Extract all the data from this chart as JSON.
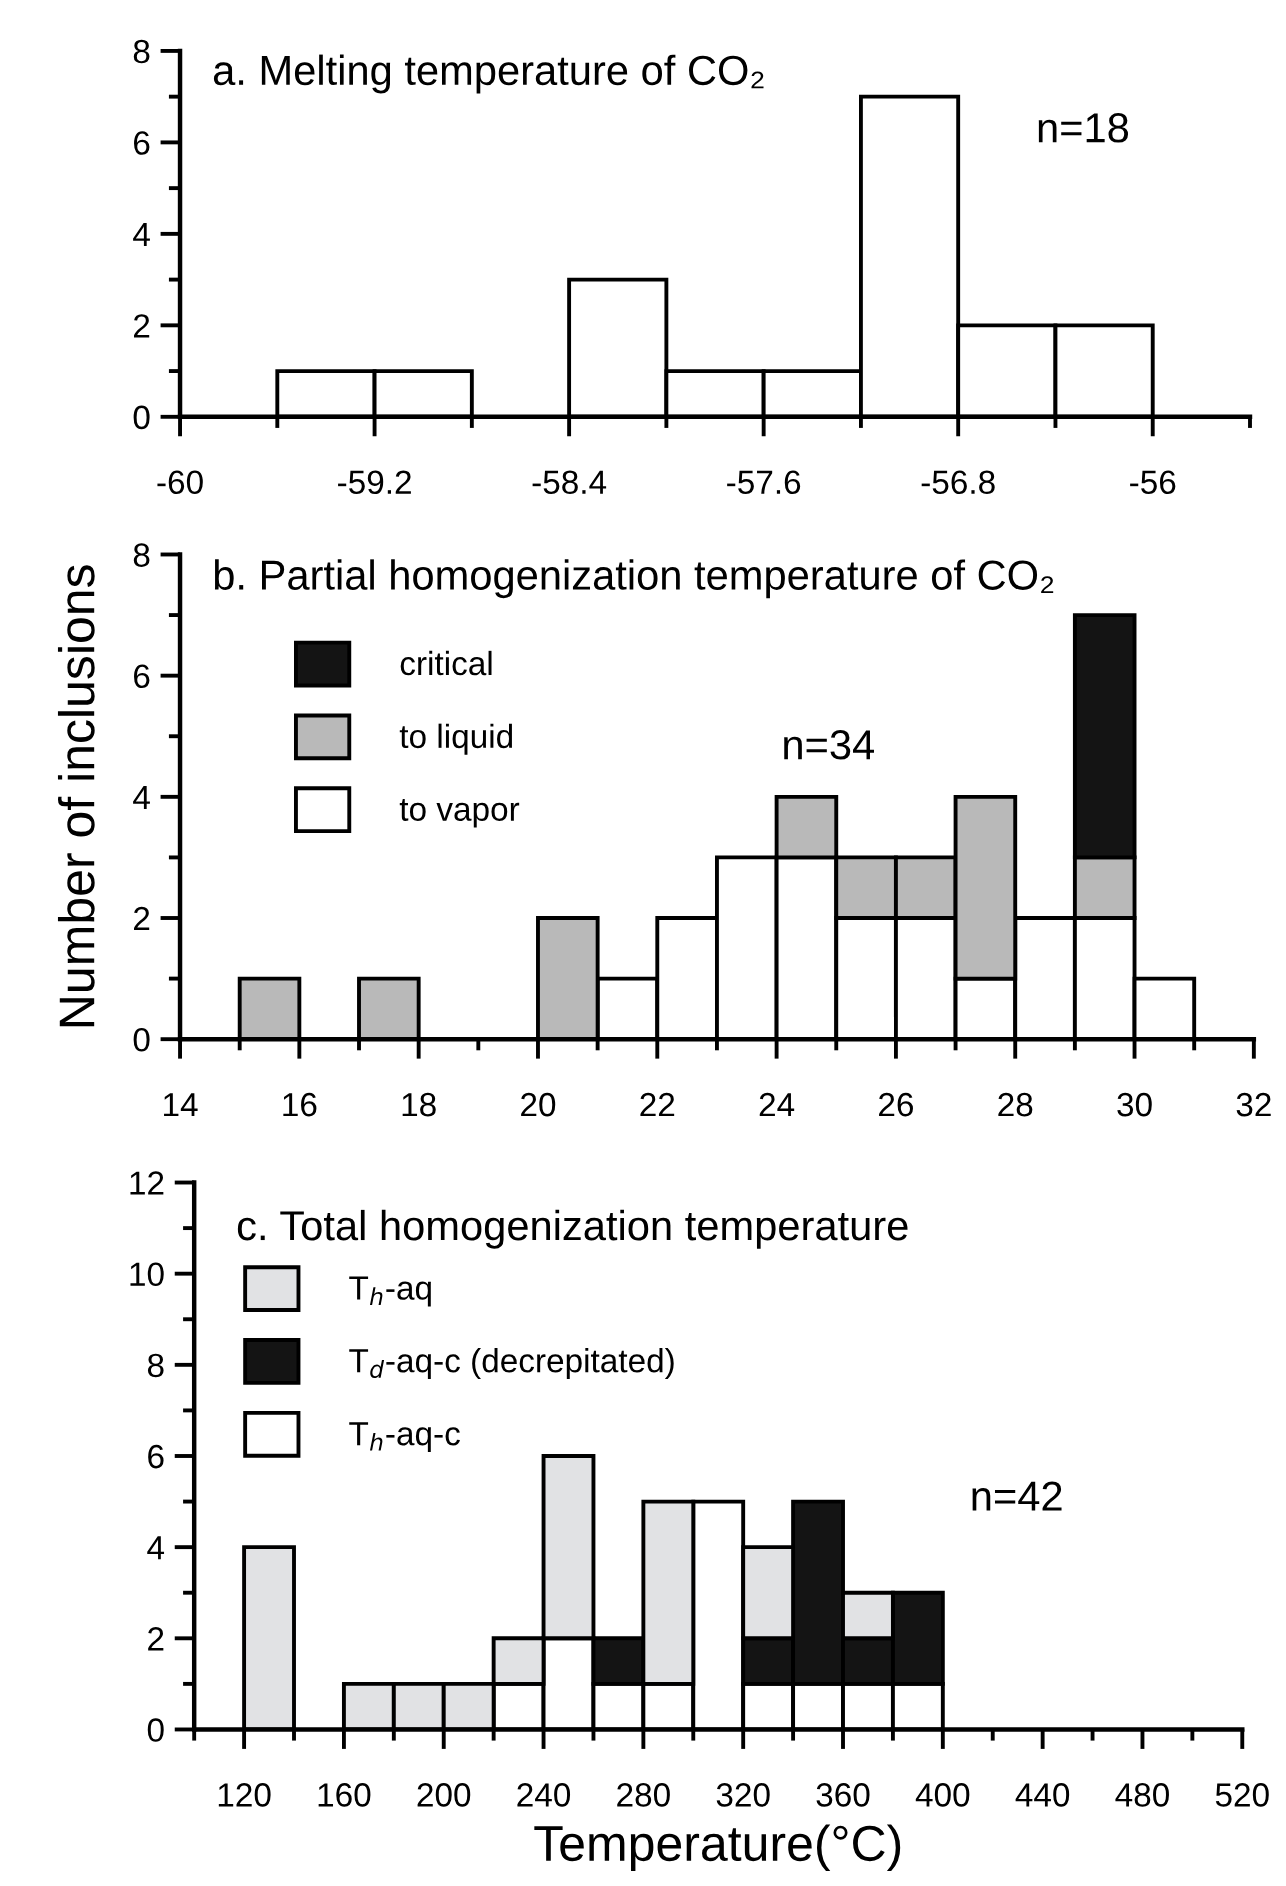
{
  "chart_data": [
    {
      "type": "histogram",
      "title": "a. Melting temperature of CO₂",
      "bins": [
        -59.6,
        -59.2,
        -58.8,
        -58.4,
        -58.0,
        -57.6,
        -57.2,
        -56.8,
        -56.4,
        -56.0
      ],
      "values": [
        1,
        1,
        0,
        3,
        1,
        1,
        7,
        2,
        2
      ],
      "color": "#ffffff",
      "xlim": [
        -60,
        -55.6
      ],
      "xticks": [
        -60,
        {
          "value": -59.6,
          "label": null
        },
        -59.2,
        {
          "value": -58.8,
          "label": null
        },
        -58.4,
        {
          "value": -58.0,
          "label": null
        },
        -57.6,
        {
          "value": -57.2,
          "label": null
        },
        -56.8,
        {
          "value": -56.4,
          "label": null
        },
        -56,
        {
          "value": -55.6,
          "label": null
        }
      ],
      "ylim": [
        0,
        8
      ],
      "yticks": [
        0,
        {
          "value": 1,
          "label": null
        },
        2,
        {
          "value": 3,
          "label": null
        },
        4,
        {
          "value": 5,
          "label": null
        },
        6,
        {
          "value": 7,
          "label": null
        },
        8
      ],
      "annotations": [
        "n=18"
      ],
      "grid": false,
      "legend": false
    },
    {
      "type": "bar",
      "title": "b. Partial homogenization temperature of CO₂",
      "ylabel": "Number of inclusions",
      "x": [
        15.5,
        16.5,
        17.5,
        18.5,
        19.5,
        20.5,
        21.5,
        22.5,
        23.5,
        24.5,
        25.5,
        26.5,
        27.5,
        28.5,
        29.5,
        30.5
      ],
      "stacked": true,
      "series": [
        {
          "name": "to vapor",
          "color": "#ffffff",
          "values": [
            0,
            0,
            0,
            0,
            0,
            0,
            1,
            2,
            3,
            3,
            2,
            2,
            1,
            2,
            2,
            1
          ]
        },
        {
          "name": "to liquid",
          "color": "#b9b9b9",
          "values": [
            1,
            0,
            1,
            0,
            0,
            2,
            0,
            0,
            0,
            1,
            1,
            1,
            3,
            0,
            1,
            0
          ]
        },
        {
          "name": "critical",
          "color": "#141414",
          "values": [
            0,
            0,
            0,
            0,
            0,
            0,
            0,
            0,
            0,
            0,
            0,
            0,
            0,
            0,
            4,
            0
          ]
        }
      ],
      "xlim": [
        14,
        32
      ],
      "xticks": [
        14,
        {
          "value": 15,
          "label": null
        },
        16,
        {
          "value": 17,
          "label": null
        },
        18,
        {
          "value": 19,
          "label": null
        },
        20,
        {
          "value": 21,
          "label": null
        },
        22,
        {
          "value": 23,
          "label": null
        },
        24,
        {
          "value": 25,
          "label": null
        },
        26,
        {
          "value": 27,
          "label": null
        },
        28,
        {
          "value": 29,
          "label": null
        },
        30,
        {
          "value": 31,
          "label": null
        },
        32
      ],
      "ylim": [
        0,
        8
      ],
      "yticks": [
        0,
        {
          "value": 1,
          "label": null
        },
        2,
        {
          "value": 3,
          "label": null
        },
        4,
        {
          "value": 5,
          "label": null
        },
        6,
        {
          "value": 7,
          "label": null
        },
        8
      ],
      "annotations": [
        "n=34"
      ],
      "grid": false,
      "legend": "top left"
    },
    {
      "type": "bar",
      "title": "c. Total homogenization temperature",
      "xlabel": "Temperature(°C)",
      "x": [
        130,
        150,
        170,
        190,
        210,
        230,
        250,
        270,
        290,
        310,
        330,
        350,
        370,
        390
      ],
      "stacked": true,
      "series": [
        {
          "name": "T$_{h}$-aq-c",
          "color": "#ffffff",
          "values": [
            0,
            0,
            0,
            0,
            0,
            1,
            2,
            1,
            1,
            5,
            1,
            1,
            1,
            1
          ]
        },
        {
          "name": "T$_{d}$-aq-c (decrepitated)",
          "color": "#141414",
          "values": [
            0,
            0,
            0,
            0,
            0,
            0,
            0,
            1,
            0,
            0,
            1,
            4,
            1,
            2
          ]
        },
        {
          "name": "T$_{h}$-aq",
          "color": "#e1e2e4",
          "values": [
            4,
            0,
            1,
            1,
            1,
            1,
            4,
            0,
            4,
            0,
            2,
            0,
            1,
            0
          ]
        }
      ],
      "xlim": [
        100,
        520
      ],
      "xticks": [
        {
          "value": 100,
          "label": null
        },
        120,
        {
          "value": 140,
          "label": null
        },
        160,
        {
          "value": 180,
          "label": null
        },
        200,
        {
          "value": 220,
          "label": null
        },
        240,
        {
          "value": 260,
          "label": null
        },
        280,
        {
          "value": 300,
          "label": null
        },
        320,
        {
          "value": 340,
          "label": null
        },
        360,
        {
          "value": 380,
          "label": null
        },
        400,
        {
          "value": 420,
          "label": null
        },
        440,
        {
          "value": 460,
          "label": null
        },
        480,
        {
          "value": 500,
          "label": null
        },
        520
      ],
      "ylim": [
        0,
        12
      ],
      "yticks": [
        0,
        {
          "value": 1,
          "label": null
        },
        2,
        {
          "value": 3,
          "label": null
        },
        4,
        {
          "value": 5,
          "label": null
        },
        6,
        {
          "value": 7,
          "label": null
        },
        8,
        {
          "value": 9,
          "label": null
        },
        10,
        {
          "value": 11,
          "label": null
        },
        12
      ],
      "annotations": [
        "n=42"
      ],
      "grid": false,
      "legend": "top left"
    }
  ]
}
